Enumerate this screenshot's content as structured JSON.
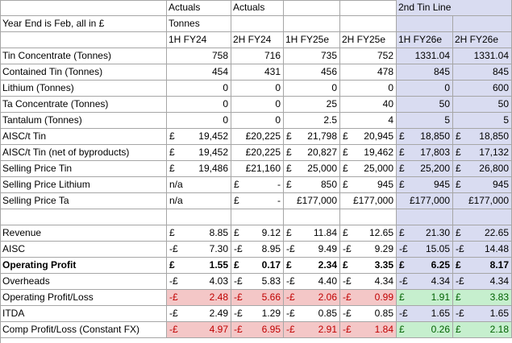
{
  "header": {
    "row1": [
      "",
      "Actuals",
      "Actuals",
      "",
      "",
      "2nd Tin Line",
      ""
    ],
    "row2": [
      "Year End is Feb, all in £",
      "Tonnes",
      "",
      "",
      "",
      "",
      ""
    ],
    "row3": [
      "",
      "1H FY24",
      "2H FY24",
      "1H FY25e",
      "2H FY25e",
      "1H FY26e",
      "2H FY26e"
    ]
  },
  "rows": [
    {
      "label": "Tin Concentrate (Tonnes)",
      "cells": [
        [
          "",
          "758"
        ],
        [
          "",
          "716"
        ],
        [
          "",
          "735"
        ],
        [
          "",
          "752"
        ],
        [
          "",
          "1331.04"
        ],
        [
          "",
          "1331.04"
        ]
      ]
    },
    {
      "label": "Contained Tin (Tonnes)",
      "cells": [
        [
          "",
          "454"
        ],
        [
          "",
          "431"
        ],
        [
          "",
          "456"
        ],
        [
          "",
          "478"
        ],
        [
          "",
          "845"
        ],
        [
          "",
          "845"
        ]
      ]
    },
    {
      "label": "Lithium (Tonnes)",
      "cells": [
        [
          "",
          "0"
        ],
        [
          "",
          "0"
        ],
        [
          "",
          "0"
        ],
        [
          "",
          "0"
        ],
        [
          "",
          "0"
        ],
        [
          "",
          "600"
        ]
      ]
    },
    {
      "label": "Ta Concentrate (Tonnes)",
      "cells": [
        [
          "",
          "0"
        ],
        [
          "",
          "0"
        ],
        [
          "",
          "25"
        ],
        [
          "",
          "40"
        ],
        [
          "",
          "50"
        ],
        [
          "",
          "50"
        ]
      ]
    },
    {
      "label": "Tantalum (Tonnes)",
      "cells": [
        [
          "",
          "0"
        ],
        [
          "",
          "0"
        ],
        [
          "",
          "2.5"
        ],
        [
          "",
          "4"
        ],
        [
          "",
          "5"
        ],
        [
          "",
          "5"
        ]
      ]
    },
    {
      "label": "AISC/t Tin",
      "cells": [
        [
          "£",
          "19,452"
        ],
        [
          "",
          "£20,225"
        ],
        [
          "£",
          "21,798"
        ],
        [
          "£",
          "20,945"
        ],
        [
          "£",
          "18,850"
        ],
        [
          "£",
          "18,850"
        ]
      ]
    },
    {
      "label": "AISC/t Tin (net of byproducts)",
      "cells": [
        [
          "£",
          "19,452"
        ],
        [
          "",
          "£20,225"
        ],
        [
          "£",
          "20,827"
        ],
        [
          "£",
          "19,462"
        ],
        [
          "£",
          "17,803"
        ],
        [
          "£",
          "17,132"
        ]
      ]
    },
    {
      "label": "Selling Price Tin",
      "cells": [
        [
          "£",
          "19,486"
        ],
        [
          "",
          "£21,160"
        ],
        [
          "£",
          "25,000"
        ],
        [
          "£",
          "25,000"
        ],
        [
          "£",
          "25,200"
        ],
        [
          "£",
          "26,800"
        ]
      ]
    },
    {
      "label": "Selling Price Lithium",
      "cells": [
        [
          "n/a",
          ""
        ],
        [
          "£",
          "-"
        ],
        [
          "£",
          "850"
        ],
        [
          "£",
          "945"
        ],
        [
          "£",
          "945"
        ],
        [
          "£",
          "945"
        ]
      ]
    },
    {
      "label": "Selling Price Ta",
      "cells": [
        [
          "n/a",
          ""
        ],
        [
          "£",
          "-"
        ],
        [
          "",
          "£177,000"
        ],
        [
          "",
          "£177,000"
        ],
        [
          "",
          "£177,000"
        ],
        [
          "",
          "£177,000"
        ]
      ]
    },
    {
      "label": "",
      "cells": [
        [
          "",
          ""
        ],
        [
          "",
          ""
        ],
        [
          "",
          ""
        ],
        [
          "",
          ""
        ],
        [
          "",
          ""
        ],
        [
          "",
          ""
        ]
      ]
    },
    {
      "label": "Revenue",
      "cells": [
        [
          "£",
          "8.85"
        ],
        [
          "£",
          "9.12"
        ],
        [
          "£",
          "11.84"
        ],
        [
          "£",
          "12.65"
        ],
        [
          "£",
          "21.30"
        ],
        [
          "£",
          "22.65"
        ]
      ]
    },
    {
      "label": "AISC",
      "cells": [
        [
          "-£",
          "7.30"
        ],
        [
          "-£",
          "8.95"
        ],
        [
          "-£",
          "9.49"
        ],
        [
          "-£",
          "9.29"
        ],
        [
          "-£",
          "15.05"
        ],
        [
          "-£",
          "14.48"
        ]
      ]
    },
    {
      "label": "Operating Profit",
      "bold": true,
      "cells": [
        [
          "£",
          "1.55"
        ],
        [
          "£",
          "0.17"
        ],
        [
          "£",
          "2.34"
        ],
        [
          "£",
          "3.35"
        ],
        [
          "£",
          "6.25"
        ],
        [
          "£",
          "8.17"
        ]
      ]
    },
    {
      "label": "Overheads",
      "cells": [
        [
          "-£",
          "4.03"
        ],
        [
          "-£",
          "5.83"
        ],
        [
          "-£",
          "4.40"
        ],
        [
          "-£",
          "4.34"
        ],
        [
          "-£",
          "4.34"
        ],
        [
          "-£",
          "4.34"
        ]
      ]
    },
    {
      "label": "Operating Profit/Loss",
      "fill": [
        "red",
        "red",
        "red",
        "red",
        "green",
        "green"
      ],
      "cells": [
        [
          "-£",
          "2.48"
        ],
        [
          "-£",
          "5.66"
        ],
        [
          "-£",
          "2.06"
        ],
        [
          "-£",
          "0.99"
        ],
        [
          "£",
          "1.91"
        ],
        [
          "£",
          "3.83"
        ]
      ]
    },
    {
      "label": "ITDA",
      "cells": [
        [
          "-£",
          "2.49"
        ],
        [
          "-£",
          "1.29"
        ],
        [
          "-£",
          "0.85"
        ],
        [
          "-£",
          "0.85"
        ],
        [
          "-£",
          "1.65"
        ],
        [
          "-£",
          "1.65"
        ]
      ]
    },
    {
      "label": "Comp Profit/Loss (Constant FX)",
      "fill": [
        "red",
        "red",
        "red",
        "red",
        "green",
        "green"
      ],
      "cells": [
        [
          "-£",
          "4.97"
        ],
        [
          "-£",
          "6.95"
        ],
        [
          "-£",
          "2.91"
        ],
        [
          "-£",
          "1.84"
        ],
        [
          "£",
          "0.26"
        ],
        [
          "£",
          "2.18"
        ]
      ]
    }
  ],
  "colors": {
    "highlight_blue": "#d9dcf1",
    "loss_fill": "#f4c7c7",
    "loss_text": "#c00000",
    "profit_fill": "#c6efce",
    "profit_text": "#006100",
    "gridline": "#a6a6a6"
  }
}
